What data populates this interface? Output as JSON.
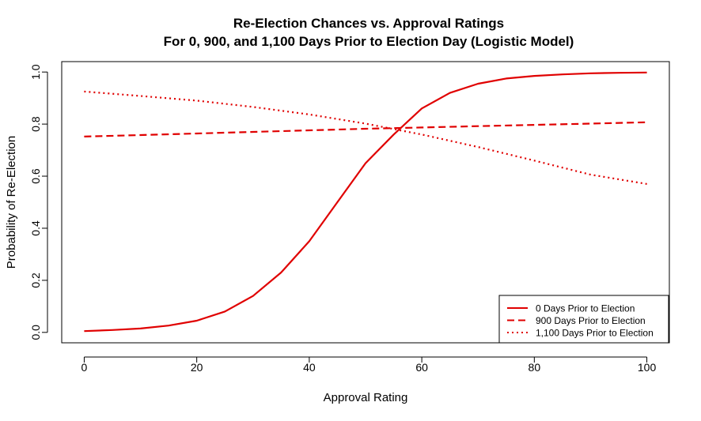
{
  "chart_data": {
    "type": "line",
    "title": "Re-Election Chances vs. Approval Ratings",
    "subtitle": "For 0, 900, and 1,100 Days Prior to Election Day (Logistic Model)",
    "xlabel": "Approval Rating",
    "ylabel": "Probability of Re-Election",
    "xlim": [
      -4,
      104
    ],
    "ylim": [
      -0.04,
      1.04
    ],
    "x_ticks": [
      0,
      20,
      40,
      60,
      80,
      100
    ],
    "x_tick_labels": [
      "0",
      "20",
      "40",
      "60",
      "80",
      "100"
    ],
    "y_ticks": [
      0.0,
      0.2,
      0.4,
      0.6,
      0.8,
      1.0
    ],
    "y_tick_labels": [
      "0.0",
      "0.2",
      "0.4",
      "0.6",
      "0.8",
      "1.0"
    ],
    "grid": false,
    "legend_position": "bottom-right",
    "line_color": "#e00000",
    "series": [
      {
        "name": "0 Days Prior to Election",
        "style": "solid",
        "x": [
          0,
          5,
          10,
          15,
          20,
          25,
          30,
          35,
          40,
          45,
          50,
          55,
          60,
          65,
          70,
          75,
          80,
          85,
          90,
          95,
          100
        ],
        "values": [
          0.005,
          0.009,
          0.015,
          0.026,
          0.045,
          0.08,
          0.14,
          0.23,
          0.35,
          0.5,
          0.65,
          0.76,
          0.86,
          0.92,
          0.955,
          0.975,
          0.985,
          0.991,
          0.995,
          0.997,
          0.998
        ]
      },
      {
        "name": "900 Days Prior to Election",
        "style": "dashed",
        "x": [
          0,
          10,
          20,
          30,
          40,
          50,
          60,
          70,
          80,
          90,
          100
        ],
        "values": [
          0.752,
          0.758,
          0.764,
          0.77,
          0.776,
          0.782,
          0.787,
          0.792,
          0.797,
          0.802,
          0.807
        ]
      },
      {
        "name": "1,100 Days Prior to Election",
        "style": "dotted",
        "x": [
          0,
          10,
          20,
          30,
          40,
          50,
          60,
          70,
          80,
          90,
          100
        ],
        "values": [
          0.925,
          0.908,
          0.89,
          0.866,
          0.837,
          0.802,
          0.76,
          0.712,
          0.66,
          0.606,
          0.57
        ]
      }
    ]
  }
}
